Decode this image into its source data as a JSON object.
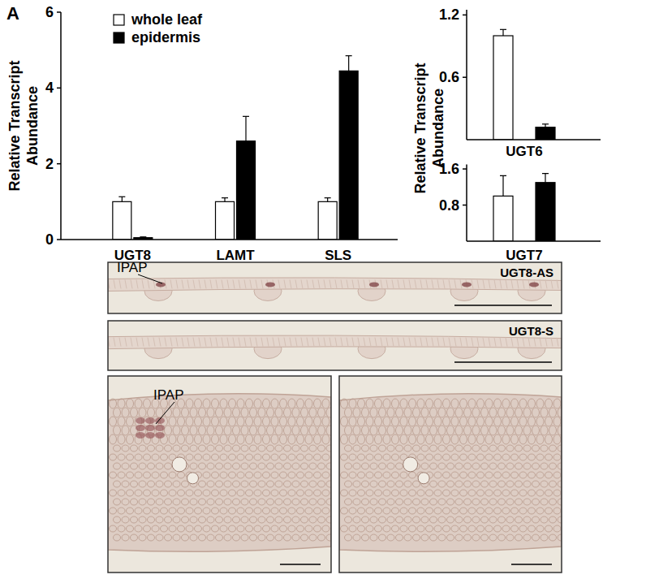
{
  "panel_label": "A",
  "chart_data": [
    {
      "type": "bar",
      "y_label": [
        "Relative Transcript",
        "Abundance"
      ],
      "categories": [
        "UGT8",
        "LAMT",
        "SLS"
      ],
      "ylim": [
        0,
        6
      ],
      "yticks": [
        0,
        2,
        4,
        6
      ],
      "legend": "top-left",
      "series": [
        {
          "name": "whole leaf",
          "color": "#ffffff",
          "values": [
            1.0,
            1.0,
            1.0
          ],
          "errors": [
            0.13,
            0.1,
            0.1
          ]
        },
        {
          "name": "epidermis",
          "color": "#000000",
          "values": [
            0.05,
            2.6,
            4.45
          ],
          "errors": [
            0.02,
            0.65,
            0.4
          ]
        }
      ]
    },
    {
      "type": "bar",
      "y_label": [
        "Relative Transcript",
        "Abundance"
      ],
      "categories": [
        "UGT6"
      ],
      "ylim": [
        0,
        1.25
      ],
      "yticks": [
        0.6,
        1.2
      ],
      "series": [
        {
          "color": "#ffffff",
          "values": [
            1.0
          ],
          "errors": [
            0.06
          ]
        },
        {
          "color": "#000000",
          "values": [
            0.12
          ],
          "errors": [
            0.03
          ]
        }
      ]
    },
    {
      "type": "bar",
      "categories": [
        "UGT7"
      ],
      "ylim": [
        0,
        1.7
      ],
      "yticks": [
        0.8,
        1.6
      ],
      "series": [
        {
          "color": "#ffffff",
          "values": [
            1.0
          ],
          "errors": [
            0.45
          ]
        },
        {
          "color": "#000000",
          "values": [
            1.3
          ],
          "errors": [
            0.2
          ]
        }
      ]
    }
  ],
  "micrographs": [
    {
      "label": "UGT8-AS",
      "annotation": "IPAP"
    },
    {
      "label": "UGT8-S"
    },
    {
      "annotation": "IPAP"
    },
    {
      "label": null
    }
  ]
}
